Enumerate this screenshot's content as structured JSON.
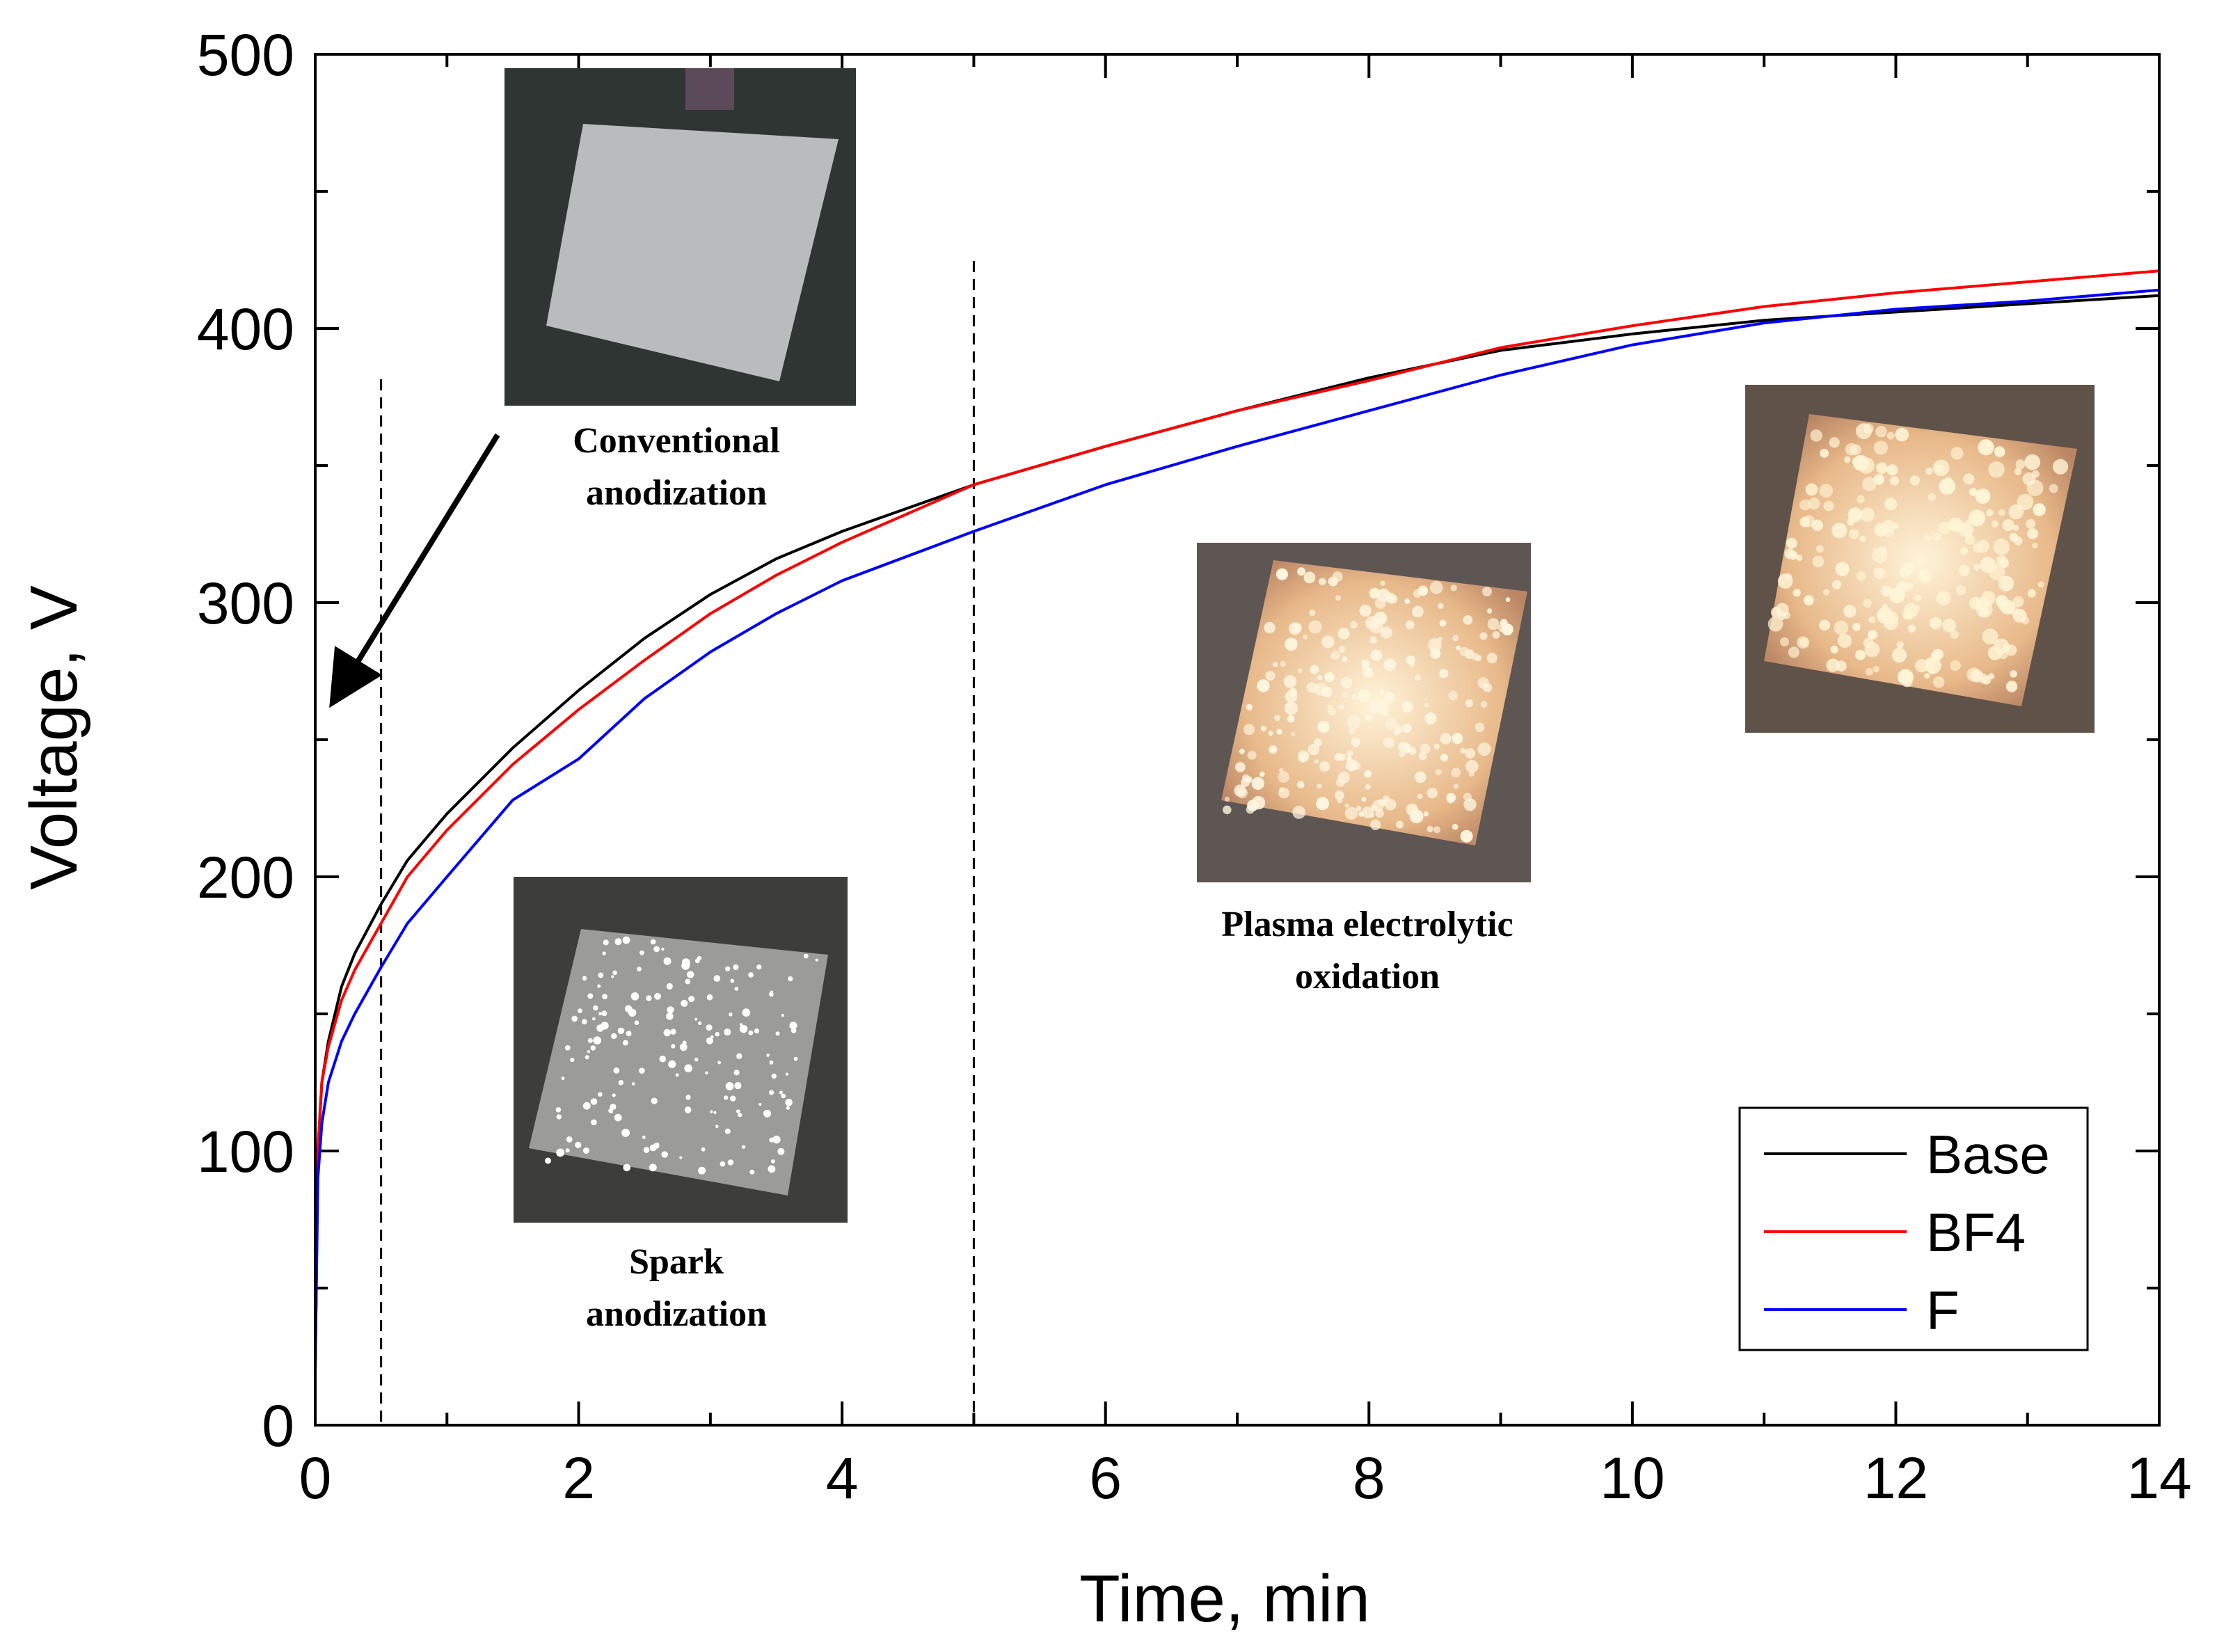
{
  "chart_data": {
    "type": "line",
    "title": "",
    "xlabel": "Time, min",
    "ylabel": "Voltage, V",
    "xlim": [
      0,
      14
    ],
    "ylim": [
      0,
      500
    ],
    "xticks": [
      0,
      2,
      4,
      6,
      8,
      10,
      12,
      14
    ],
    "yticks": [
      0,
      100,
      200,
      300,
      400,
      500
    ],
    "x_tick_labels": [
      "0",
      "2",
      "4",
      "6",
      "8",
      "10",
      "12",
      "14"
    ],
    "y_tick_labels": [
      "0",
      "100",
      "200",
      "300",
      "400",
      "500"
    ],
    "grid": false,
    "legend_position": "bottom-right",
    "series": [
      {
        "name": "Base",
        "color": "#000000",
        "x": [
          0,
          0.02,
          0.05,
          0.1,
          0.2,
          0.3,
          0.5,
          0.7,
          1,
          1.5,
          2,
          2.5,
          3,
          3.5,
          4,
          5,
          6,
          7,
          8,
          9,
          10,
          11,
          12,
          13,
          14
        ],
        "y": [
          20,
          100,
          125,
          140,
          160,
          172,
          190,
          206,
          223,
          247,
          268,
          287,
          303,
          316,
          326,
          343,
          357,
          370,
          382,
          392,
          398,
          403,
          406,
          409,
          412
        ]
      },
      {
        "name": "BF4",
        "color": "#ff0000",
        "x": [
          0,
          0.02,
          0.05,
          0.1,
          0.2,
          0.3,
          0.5,
          0.7,
          1,
          1.5,
          2,
          2.5,
          3,
          3.5,
          4,
          5,
          6,
          7,
          8,
          9,
          10,
          11,
          12,
          13,
          14
        ],
        "y": [
          20,
          100,
          125,
          138,
          155,
          166,
          183,
          200,
          217,
          241,
          261,
          279,
          296,
          310,
          322,
          343,
          357,
          370,
          381,
          393,
          401,
          408,
          413,
          417,
          421
        ]
      },
      {
        "name": "F",
        "color": "#0000ff",
        "x": [
          0,
          0.02,
          0.05,
          0.1,
          0.2,
          0.3,
          0.5,
          0.7,
          1,
          1.5,
          2,
          2.5,
          3,
          3.5,
          4,
          5,
          6,
          7,
          8,
          9,
          10,
          11,
          12,
          13,
          14
        ],
        "y": [
          20,
          90,
          110,
          125,
          140,
          150,
          167,
          183,
          200,
          228,
          243,
          265,
          282,
          296,
          308,
          326,
          343,
          357,
          370,
          383,
          394,
          402,
          407,
          410,
          414
        ]
      }
    ],
    "vertical_markers": [
      0.5,
      5
    ],
    "annotations": [
      {
        "text_lines": [
          "Conventional",
          "anodization"
        ],
        "photo": "pale-plate"
      },
      {
        "text_lines": [
          "Spark",
          "anodization"
        ],
        "photo": "sparkling-plate"
      },
      {
        "text_lines": [
          "Plasma electrolytic",
          "oxidation"
        ],
        "photo": "glowing-plate"
      },
      {
        "text_lines": [],
        "photo": "glowing-plate-bright"
      }
    ]
  }
}
